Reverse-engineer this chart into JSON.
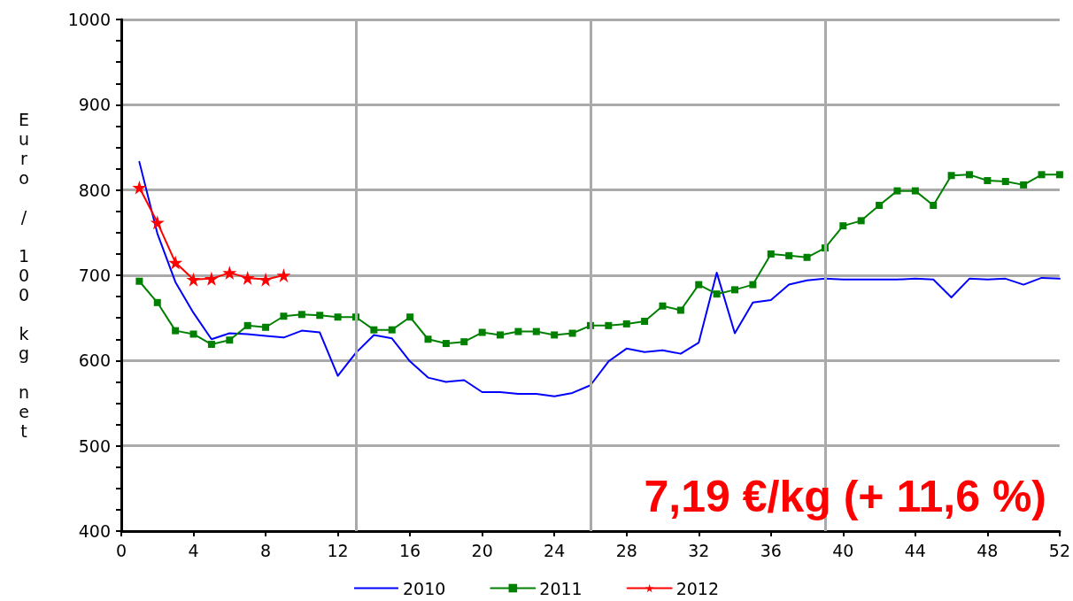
{
  "chart_data": {
    "type": "line",
    "ylabel": "Euro / 100 kg net",
    "x": [
      1,
      2,
      3,
      4,
      5,
      6,
      7,
      8,
      9,
      10,
      11,
      12,
      13,
      14,
      15,
      16,
      17,
      18,
      19,
      20,
      21,
      22,
      23,
      24,
      25,
      26,
      27,
      28,
      29,
      30,
      31,
      32,
      33,
      34,
      35,
      36,
      37,
      38,
      39,
      40,
      41,
      42,
      43,
      44,
      45,
      46,
      47,
      48,
      49,
      50,
      51,
      52
    ],
    "series": [
      {
        "name": "2010",
        "color": "#0000ff",
        "marker": "none",
        "values": [
          833,
          749,
          692,
          656,
          625,
          632,
          631,
          629,
          627,
          635,
          633,
          582,
          609,
          630,
          626,
          599,
          580,
          575,
          577,
          563,
          563,
          561,
          561,
          558,
          562,
          571,
          599,
          614,
          610,
          612,
          608,
          621,
          703,
          632,
          668,
          671,
          689,
          694,
          696,
          695,
          695,
          695,
          695,
          696,
          695,
          674,
          696,
          695,
          696,
          689,
          697,
          696
        ]
      },
      {
        "name": "2011",
        "color": "#008000",
        "marker": "square",
        "values": [
          693,
          668,
          635,
          631,
          619,
          624,
          641,
          639,
          652,
          654,
          653,
          651,
          651,
          636,
          636,
          651,
          625,
          620,
          622,
          633,
          630,
          634,
          634,
          630,
          632,
          641,
          641,
          643,
          646,
          664,
          659,
          689,
          678,
          683,
          689,
          725,
          723,
          721,
          732,
          758,
          764,
          782,
          799,
          799,
          782,
          817,
          818,
          811,
          810,
          806,
          818,
          818
        ]
      },
      {
        "name": "2012",
        "color": "#ff0000",
        "marker": "star",
        "values": [
          803,
          762,
          715,
          695,
          696,
          703,
          697,
          695,
          700,
          null,
          null,
          null,
          null,
          null,
          null,
          null,
          null,
          null,
          null,
          null,
          null,
          null,
          null,
          null,
          null,
          null,
          null,
          null,
          null,
          null,
          null,
          null,
          null,
          null,
          null,
          null,
          null,
          null,
          null,
          null,
          null,
          null,
          null,
          null,
          null,
          null,
          null,
          null,
          null,
          null,
          null,
          null
        ]
      }
    ],
    "xlim": [
      0,
      52
    ],
    "xticks": [
      0,
      4,
      8,
      12,
      16,
      20,
      24,
      28,
      32,
      36,
      40,
      44,
      48,
      52
    ],
    "ylim": [
      400,
      1000
    ],
    "yticks": [
      400,
      {
        "value": 425,
        "label": null
      },
      {
        "value": 450,
        "label": null
      },
      {
        "value": 475,
        "label": null
      },
      500,
      {
        "value": 525,
        "label": null
      },
      {
        "value": 550,
        "label": null
      },
      {
        "value": 575,
        "label": null
      },
      600,
      {
        "value": 625,
        "label": null
      },
      {
        "value": 650,
        "label": null
      },
      {
        "value": 675,
        "label": null
      },
      700,
      {
        "value": 725,
        "label": null
      },
      {
        "value": 750,
        "label": null
      },
      {
        "value": 775,
        "label": null
      },
      800,
      {
        "value": 825,
        "label": null
      },
      {
        "value": 850,
        "label": null
      },
      {
        "value": 875,
        "label": null
      },
      900,
      {
        "value": 925,
        "label": null
      },
      {
        "value": 950,
        "label": null
      },
      {
        "value": 975,
        "label": null
      },
      1000
    ],
    "grid": "y",
    "ref_lines": [
      {
        "axis": "x",
        "value": 13,
        "color": "#aaaaaa"
      },
      {
        "axis": "x",
        "value": 26,
        "color": "#aaaaaa"
      },
      {
        "axis": "x",
        "value": 39,
        "color": "#aaaaaa"
      }
    ],
    "legend": "bottom",
    "annotations": [
      "7,19 €/kg (+ 11,6 %)"
    ]
  }
}
